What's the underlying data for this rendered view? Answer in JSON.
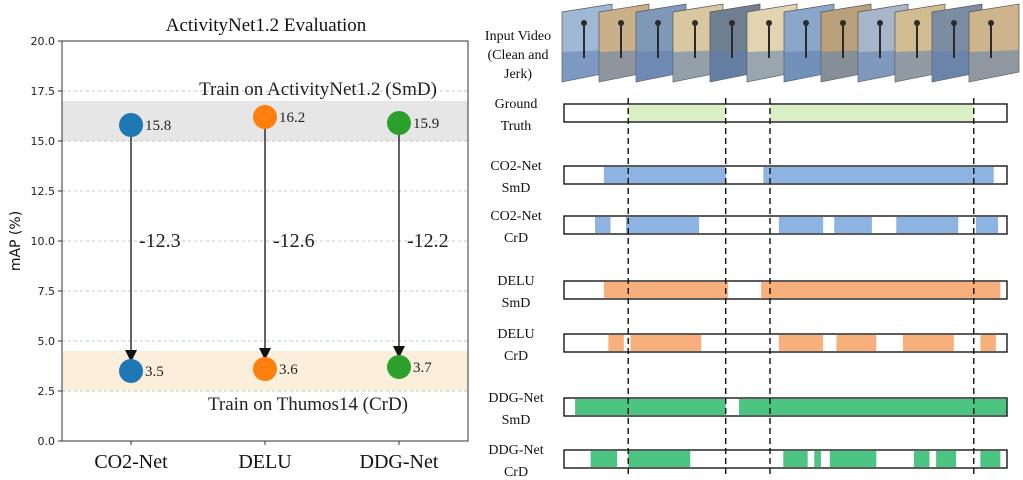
{
  "chart_data": [
    {
      "type": "dot-arrow",
      "title": "ActivityNet1.2 Evaluation",
      "ylabel": "mAP (%)",
      "ylim": [
        0,
        20
      ],
      "yticks": [
        "0.0",
        "2.5",
        "5.0",
        "7.5",
        "10.0",
        "12.5",
        "15.0",
        "17.5",
        "20.0"
      ],
      "grid": "horizontal-dashed",
      "categories": [
        "CO2-Net",
        "DELU",
        "DDG-Net"
      ],
      "series": [
        {
          "name": "SmD",
          "values": [
            15.8,
            16.2,
            15.9
          ]
        },
        {
          "name": "CrD",
          "values": [
            3.5,
            3.6,
            3.7
          ]
        }
      ],
      "value_labels": {
        "smd": [
          "15.8",
          "16.2",
          "15.9"
        ],
        "crd": [
          "3.5",
          "3.6",
          "3.7"
        ]
      },
      "deltas": [
        "-12.3",
        "-12.6",
        "-12.2"
      ],
      "bands": [
        {
          "label": "Train on ActivityNet1.2 (SmD)",
          "range": [
            15.0,
            17.0
          ],
          "color": "#e6e6e6"
        },
        {
          "label": "Train on Thumos14 (CrD)",
          "range": [
            2.5,
            4.5
          ],
          "color": "#fbefdc"
        }
      ],
      "colors": [
        "#1f77b4",
        "#ff7f0e",
        "#2ca02c"
      ]
    },
    {
      "type": "timeline",
      "domain": [
        0,
        100
      ],
      "input_label": [
        "Input Video",
        "(Clean and",
        "Jerk)"
      ],
      "boundaries": [
        14.5,
        36.5,
        46.5,
        92.5
      ],
      "rows": [
        {
          "label": [
            "Ground",
            "Truth"
          ],
          "color": "#d9efc6",
          "segments": [
            [
              14.5,
              36.5
            ],
            [
              46.5,
              92.5
            ]
          ]
        },
        {
          "label": [
            "CO2-Net",
            "SmD"
          ],
          "color": "#8db3e2",
          "segments": [
            [
              9,
              36.5
            ],
            [
              45,
              97
            ]
          ]
        },
        {
          "label": [
            "CO2-Net",
            "CrD"
          ],
          "color": "#8db3e2",
          "segments": [
            [
              7,
              10.5
            ],
            [
              14,
              30.5
            ],
            [
              48.5,
              58.5
            ],
            [
              61,
              69.5
            ],
            [
              75,
              89
            ],
            [
              93,
              98
            ]
          ]
        },
        {
          "label": [
            "DELU",
            "SmD"
          ],
          "color": "#f7b07c",
          "segments": [
            [
              9,
              37
            ],
            [
              44.5,
              98.5
            ]
          ]
        },
        {
          "label": [
            "DELU",
            "CrD"
          ],
          "color": "#f7b07c",
          "segments": [
            [
              10,
              13.5
            ],
            [
              15,
              31
            ],
            [
              48.5,
              58.5
            ],
            [
              61.5,
              70.5
            ],
            [
              76.5,
              88
            ],
            [
              94,
              97.5
            ]
          ]
        },
        {
          "label": [
            "DDG-Net",
            "SmD"
          ],
          "color": "#4cc482",
          "segments": [
            [
              2.5,
              36.5
            ],
            [
              39.5,
              101.5
            ]
          ]
        },
        {
          "label": [
            "DDG-Net",
            "CrD"
          ],
          "color": "#4cc482",
          "segments": [
            [
              6,
              12
            ],
            [
              14.5,
              28.5
            ],
            [
              49.5,
              55
            ],
            [
              56.5,
              58
            ],
            [
              60,
              70.5
            ],
            [
              79,
              82.5
            ],
            [
              84,
              88.5
            ],
            [
              94,
              98.5
            ]
          ]
        }
      ],
      "frame_colors": [
        "#9fb8d6",
        "#c9b08a",
        "#7f98b8",
        "#d8c7a0",
        "#6f7f92",
        "#e2d4b0",
        "#8aa6c8",
        "#b99f7a",
        "#a7b7c9",
        "#d1bc92",
        "#7c8da3",
        "#cdb48c"
      ]
    }
  ]
}
